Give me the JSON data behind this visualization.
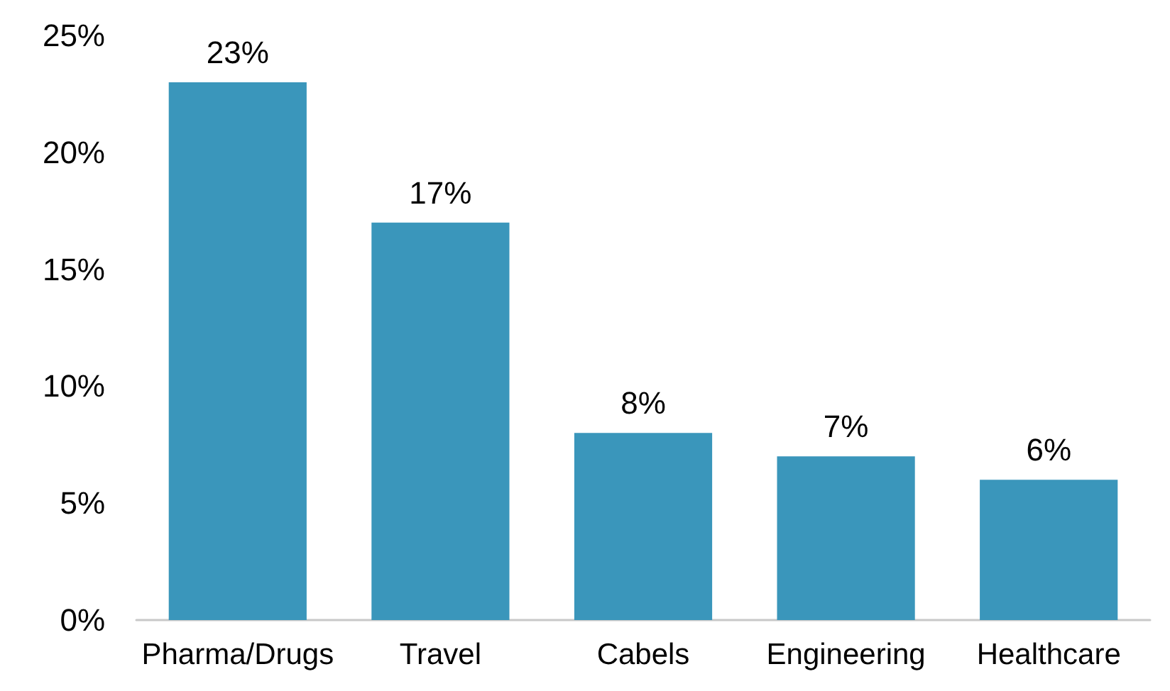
{
  "chart_data": {
    "type": "bar",
    "categories": [
      "Pharma/Drugs",
      "Travel",
      "Cabels",
      "Engineering",
      "Healthcare"
    ],
    "values": [
      23,
      17,
      8,
      7,
      6
    ],
    "value_labels": [
      "23%",
      "17%",
      "8%",
      "7%",
      "6%"
    ],
    "color": "#3a96bb",
    "grid": false,
    "ylim": [
      0,
      25
    ],
    "yticks": [
      {
        "value": 0,
        "label": "0%"
      },
      {
        "value": 5,
        "label": "5%"
      },
      {
        "value": 10,
        "label": "10%"
      },
      {
        "value": 15,
        "label": "15%"
      },
      {
        "value": 20,
        "label": "20%"
      },
      {
        "value": 25,
        "label": "25%"
      }
    ]
  }
}
